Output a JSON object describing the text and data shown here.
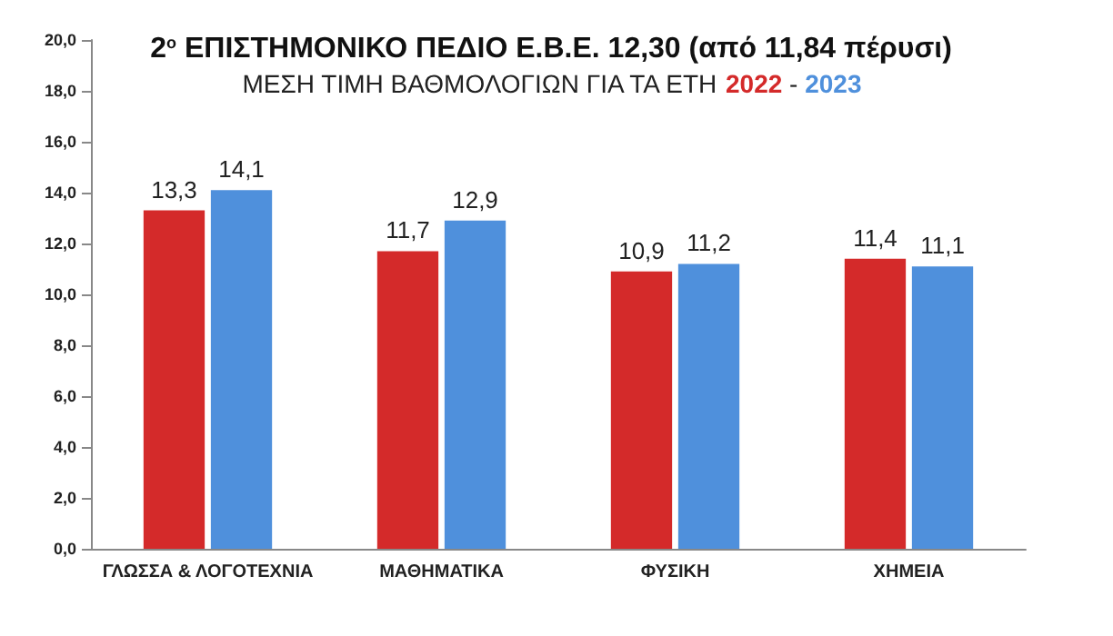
{
  "chart_data": {
    "type": "bar",
    "title": "2$^{ο}$ ΕΠΙΣΤΗΜΟΝΙΚΟ ΠΕΔΙΟ Ε.Β.Ε. 12,30 (από 11,84 πέρυσι)",
    "subtitle": "ΜΕΣΗ ΤΙΜΗ ΒΑΘΜΟΛΟΓΙΩΝ ΓΙΑ ΤΑ ΕΤΗ",
    "categories": [
      "ΓΛΩΣΣΑ & ΛΟΓΟΤΕΧΝΙΑ",
      "ΜΑΘΗΜΑΤΙΚΑ",
      "ΦΥΣΙΚΗ",
      "ΧΗΜΕΙΑ"
    ],
    "series": [
      {
        "name": "2022",
        "color": "#d42a2a",
        "values": [
          13.3,
          11.7,
          10.9,
          11.4
        ],
        "value_labels": [
          "13,3",
          "11,7",
          "10,9",
          "11,4"
        ]
      },
      {
        "name": "2023",
        "color": "#4f90dc",
        "values": [
          14.1,
          12.9,
          11.2,
          11.1
        ],
        "value_labels": [
          "14,1",
          "12,9",
          "11,2",
          "11,1"
        ]
      }
    ],
    "ylim": [
      0,
      20
    ],
    "yticks": [
      {
        "value": 0,
        "label": "0,0"
      },
      {
        "value": 2,
        "label": "2,0"
      },
      {
        "value": 4,
        "label": "4,0"
      },
      {
        "value": 6,
        "label": "6,0"
      },
      {
        "value": 8,
        "label": "8,0"
      },
      {
        "value": 10,
        "label": "10,0"
      },
      {
        "value": 12,
        "label": "12,0"
      },
      {
        "value": 14,
        "label": "14,0"
      },
      {
        "value": 16,
        "label": "16,0"
      },
      {
        "value": 18,
        "label": "18,0"
      },
      {
        "value": 20,
        "label": "20,0"
      }
    ],
    "annotations": [
      "-"
    ],
    "grid": false,
    "legend": false
  }
}
